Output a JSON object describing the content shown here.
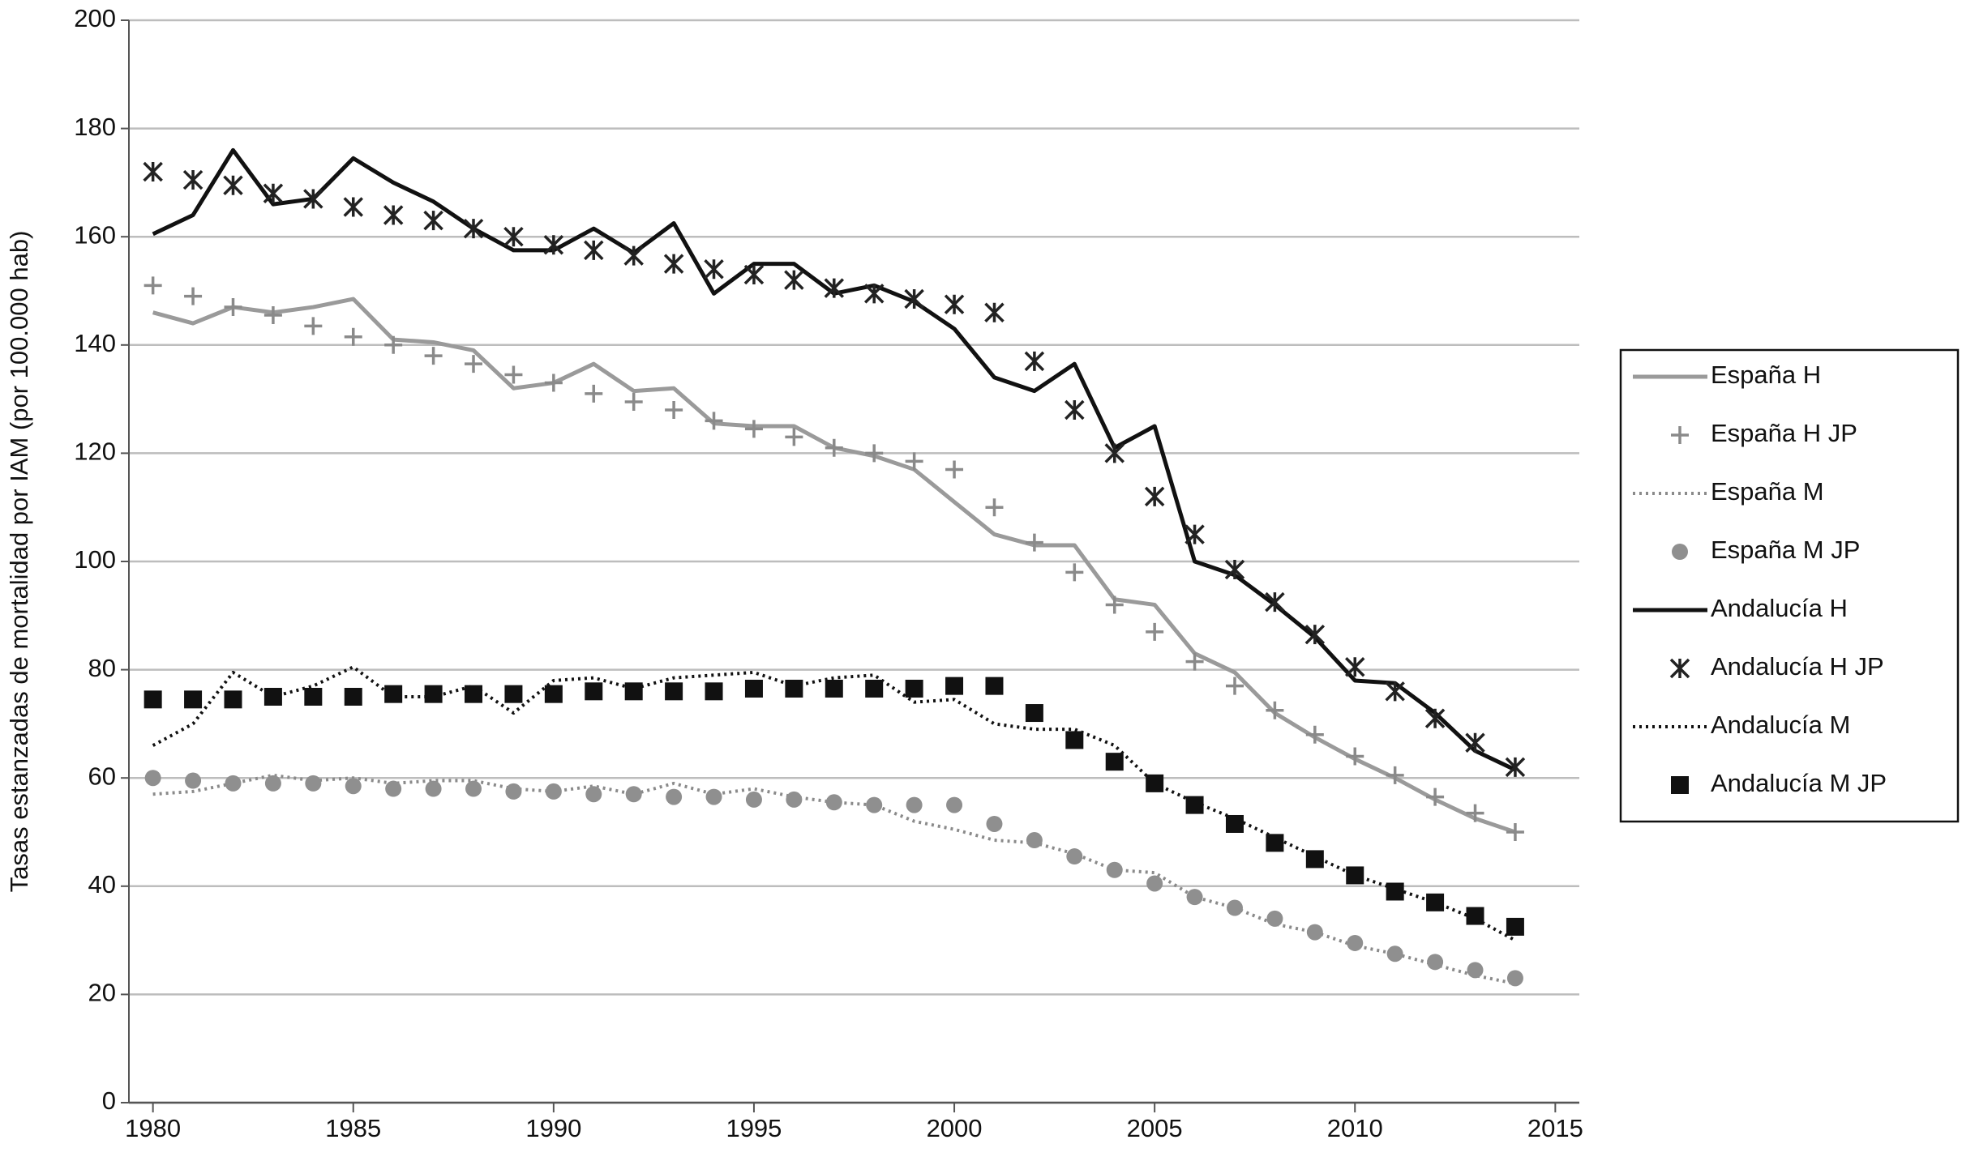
{
  "chart_data": {
    "type": "line",
    "y_label": "Tasas estanzadas de mortalidad por IAM (por 100.000 hab)",
    "x": [
      1980,
      1981,
      1982,
      1983,
      1984,
      1985,
      1986,
      1987,
      1988,
      1989,
      1990,
      1991,
      1992,
      1993,
      1994,
      1995,
      1996,
      1997,
      1998,
      1999,
      2000,
      2001,
      2002,
      2003,
      2004,
      2005,
      2006,
      2007,
      2008,
      2009,
      2010,
      2011,
      2012,
      2013,
      2014
    ],
    "xlim": [
      1979.4,
      2015.6
    ],
    "xticks": [
      1980,
      1985,
      1990,
      1995,
      2000,
      2005,
      2010,
      2015
    ],
    "ylim": [
      0,
      200
    ],
    "yticks": [
      0,
      20,
      40,
      60,
      80,
      100,
      120,
      140,
      160,
      180,
      200
    ],
    "grid": true,
    "legend": "right",
    "series": [
      {
        "name": "España H",
        "color": "#9a9a9a",
        "style": "solid",
        "values": [
          146,
          144,
          147,
          146,
          147,
          148.5,
          141,
          140.5,
          139,
          132,
          133,
          136.5,
          131.5,
          132,
          125.5,
          125,
          125,
          121,
          119.5,
          117,
          111,
          105,
          103,
          103,
          93,
          92,
          83,
          79.5,
          72,
          67.5,
          63.5,
          60,
          56,
          52.5,
          50
        ]
      },
      {
        "name": "España H JP",
        "color": "#8a8a8a",
        "style": "plus",
        "values": [
          151,
          149,
          147,
          145.5,
          143.5,
          141.5,
          140,
          138,
          136.5,
          134.5,
          133,
          131,
          129.5,
          128,
          126,
          124.5,
          123,
          121,
          120,
          118.5,
          117,
          110,
          103.5,
          98,
          92,
          87,
          81.5,
          77,
          72.5,
          68,
          64,
          60.5,
          56.5,
          53.5,
          50
        ]
      },
      {
        "name": "España M",
        "color": "#8a8a8a",
        "style": "dotted",
        "values": [
          57,
          57.5,
          59,
          60.5,
          59.5,
          60,
          59,
          59.5,
          59.5,
          58,
          57.5,
          58.5,
          57,
          59,
          57,
          58,
          56.5,
          55.5,
          55,
          52,
          50.5,
          48.5,
          48,
          46,
          43,
          42.5,
          38,
          36,
          33,
          31.5,
          29,
          27.5,
          25.5,
          23.5,
          22
        ]
      },
      {
        "name": "España M JP",
        "color": "#8f8f8f",
        "style": "circle",
        "values": [
          60,
          59.5,
          59,
          59,
          59,
          58.5,
          58,
          58,
          58,
          57.5,
          57.5,
          57,
          57,
          56.5,
          56.5,
          56,
          56,
          55.5,
          55,
          55,
          55,
          51.5,
          48.5,
          45.5,
          43,
          40.5,
          38,
          36,
          34,
          31.5,
          29.5,
          27.5,
          26,
          24.5,
          23
        ]
      },
      {
        "name": "Andalucía H",
        "color": "#111111",
        "style": "solid",
        "values": [
          160.5,
          164,
          176,
          166,
          167,
          174.5,
          170,
          166.5,
          161.5,
          157.5,
          157.5,
          161.5,
          157,
          162.5,
          149.5,
          155,
          155,
          149.5,
          151,
          148,
          143,
          134,
          131.5,
          136.5,
          121,
          125,
          100,
          97.5,
          92,
          86,
          78,
          77.5,
          72,
          65,
          61.5
        ]
      },
      {
        "name": "Andalucía H JP",
        "color": "#222222",
        "style": "x",
        "values": [
          172,
          170.5,
          169.5,
          168,
          167,
          165.5,
          164,
          163,
          161.5,
          160,
          158.5,
          157.5,
          156.5,
          155,
          154,
          153,
          152,
          150.5,
          149.5,
          148.5,
          147.5,
          146,
          137,
          128,
          120,
          112,
          105,
          98.5,
          92.5,
          86.5,
          80.5,
          76,
          71,
          66.5,
          62
        ]
      },
      {
        "name": "Andalucía M",
        "color": "#111111",
        "style": "dotted",
        "values": [
          66,
          70,
          79.5,
          75,
          77,
          80.5,
          75,
          75,
          77,
          72,
          78,
          78.5,
          76.5,
          78.5,
          79,
          79.5,
          77,
          78.5,
          79,
          74,
          74.5,
          70,
          69,
          69,
          66,
          59,
          55.5,
          52.5,
          49,
          45.5,
          42,
          39.5,
          37,
          34,
          30
        ]
      },
      {
        "name": "Andalucía M JP",
        "color": "#111111",
        "style": "square",
        "values": [
          74.5,
          74.5,
          74.5,
          75,
          75,
          75,
          75.5,
          75.5,
          75.5,
          75.5,
          75.5,
          76,
          76,
          76,
          76,
          76.5,
          76.5,
          76.5,
          76.5,
          76.5,
          77,
          77,
          72,
          67,
          63,
          59,
          55,
          51.5,
          48,
          45,
          42,
          39,
          37,
          34.5,
          32.5
        ]
      }
    ]
  }
}
